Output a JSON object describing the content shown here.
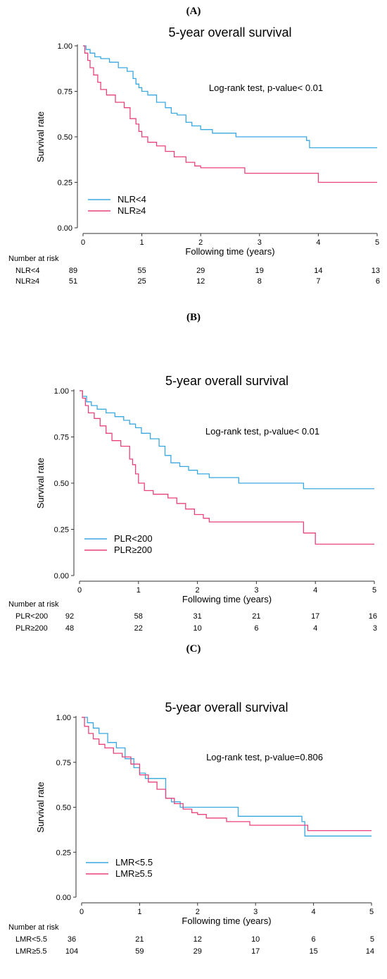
{
  "colors": {
    "blue": "#3aa8e0",
    "pink": "#e8427c",
    "axis": "#333333"
  },
  "chart_data": [
    {
      "type": "line",
      "panel_label": "(A)",
      "title": "5-year overall survival",
      "xlabel": "Following time (years)",
      "ylabel": "Survival rate",
      "xlim": [
        0,
        5
      ],
      "ylim": [
        0,
        1
      ],
      "xticks": [
        "0",
        "1",
        "2",
        "3",
        "4",
        "5"
      ],
      "yticks": [
        "0.00",
        "0.25",
        "0.50",
        "0.75",
        "1.00"
      ],
      "annotation": "Log-rank test, p-value< 0.01",
      "legend_position": "bottom-left",
      "series": [
        {
          "name": "NLR<4",
          "color": "blue",
          "x": [
            0,
            0.05,
            0.12,
            0.2,
            0.3,
            0.45,
            0.6,
            0.75,
            0.85,
            0.9,
            0.95,
            1.0,
            1.1,
            1.25,
            1.4,
            1.5,
            1.6,
            1.75,
            1.85,
            2.0,
            2.2,
            2.6,
            3.8,
            3.85,
            5.0
          ],
          "y": [
            1,
            0.98,
            0.96,
            0.94,
            0.93,
            0.91,
            0.88,
            0.86,
            0.82,
            0.79,
            0.77,
            0.75,
            0.73,
            0.69,
            0.66,
            0.63,
            0.62,
            0.58,
            0.56,
            0.54,
            0.52,
            0.5,
            0.48,
            0.44,
            0.44
          ]
        },
        {
          "name": "NLR≥4",
          "color": "pink",
          "x": [
            0,
            0.03,
            0.08,
            0.12,
            0.18,
            0.25,
            0.3,
            0.4,
            0.55,
            0.7,
            0.8,
            0.9,
            0.95,
            1.0,
            1.1,
            1.25,
            1.4,
            1.55,
            1.75,
            1.9,
            2.0,
            2.75,
            4.0,
            5.0
          ],
          "y": [
            1,
            0.96,
            0.92,
            0.88,
            0.84,
            0.8,
            0.76,
            0.73,
            0.69,
            0.66,
            0.6,
            0.57,
            0.53,
            0.5,
            0.47,
            0.45,
            0.42,
            0.39,
            0.36,
            0.34,
            0.33,
            0.3,
            0.25,
            0.25
          ]
        }
      ],
      "risk_table": {
        "title": "Number at risk",
        "rows": [
          {
            "label": "NLR<4",
            "values": [
              "89",
              "55",
              "29",
              "19",
              "14",
              "13"
            ]
          },
          {
            "label": "NLR≥4",
            "values": [
              "51",
              "25",
              "12",
              "8",
              "7",
              "6"
            ]
          }
        ]
      }
    },
    {
      "type": "line",
      "panel_label": "(B)",
      "title": "5-year overall survival",
      "xlabel": "Following time (years)",
      "ylabel": "Survival rate",
      "xlim": [
        0,
        5
      ],
      "ylim": [
        0,
        1
      ],
      "xticks": [
        "0",
        "1",
        "2",
        "3",
        "4",
        "5"
      ],
      "yticks": [
        "0.00",
        "0.25",
        "0.50",
        "0.75",
        "1.00"
      ],
      "annotation": "Log-rank test, p-value< 0.01",
      "legend_position": "bottom-left",
      "series": [
        {
          "name": "PLR<200",
          "color": "blue",
          "x": [
            0,
            0.05,
            0.12,
            0.2,
            0.3,
            0.45,
            0.6,
            0.75,
            0.85,
            0.95,
            1.05,
            1.2,
            1.35,
            1.45,
            1.55,
            1.7,
            1.85,
            2.0,
            2.2,
            2.7,
            3.8,
            5.0
          ],
          "y": [
            1,
            0.97,
            0.94,
            0.92,
            0.9,
            0.88,
            0.86,
            0.84,
            0.82,
            0.8,
            0.77,
            0.74,
            0.7,
            0.65,
            0.61,
            0.59,
            0.57,
            0.55,
            0.53,
            0.5,
            0.47,
            0.47
          ]
        },
        {
          "name": "PLR≥200",
          "color": "pink",
          "x": [
            0,
            0.05,
            0.1,
            0.15,
            0.25,
            0.35,
            0.45,
            0.55,
            0.7,
            0.85,
            0.9,
            0.95,
            1.0,
            1.1,
            1.25,
            1.5,
            1.65,
            1.8,
            1.95,
            2.1,
            2.2,
            3.8,
            4.0,
            5.0
          ],
          "y": [
            1,
            0.96,
            0.92,
            0.88,
            0.85,
            0.81,
            0.77,
            0.73,
            0.7,
            0.63,
            0.6,
            0.55,
            0.5,
            0.46,
            0.44,
            0.42,
            0.39,
            0.36,
            0.33,
            0.31,
            0.29,
            0.23,
            0.17,
            0.17
          ]
        }
      ],
      "risk_table": {
        "title": "Number at risk",
        "rows": [
          {
            "label": "PLR<200",
            "values": [
              "92",
              "58",
              "31",
              "21",
              "17",
              "16"
            ]
          },
          {
            "label": "PLR≥200",
            "values": [
              "48",
              "22",
              "10",
              "6",
              "4",
              "3"
            ]
          }
        ]
      }
    },
    {
      "type": "line",
      "panel_label": "(C)",
      "title": "5-year overall survival",
      "xlabel": "Following time (years)",
      "ylabel": "Survival rate",
      "xlim": [
        0,
        5
      ],
      "ylim": [
        0,
        1
      ],
      "xticks": [
        "0",
        "1",
        "2",
        "3",
        "4",
        "5"
      ],
      "yticks": [
        "0.00",
        "0.25",
        "0.50",
        "0.75",
        "1.00"
      ],
      "annotation": "Log-rank test, p-value=0.806",
      "legend_position": "bottom-left",
      "series": [
        {
          "name": "LMR<5.5",
          "color": "blue",
          "x": [
            0,
            0.1,
            0.2,
            0.3,
            0.45,
            0.6,
            0.75,
            0.9,
            1.0,
            1.1,
            1.45,
            1.55,
            1.7,
            2.0,
            2.7,
            3.8,
            3.85,
            5.0
          ],
          "y": [
            1,
            0.97,
            0.94,
            0.91,
            0.86,
            0.83,
            0.77,
            0.72,
            0.69,
            0.66,
            0.55,
            0.53,
            0.5,
            0.5,
            0.45,
            0.42,
            0.34,
            0.34
          ]
        },
        {
          "name": "LMR≥5.5",
          "color": "pink",
          "x": [
            0,
            0.05,
            0.12,
            0.2,
            0.3,
            0.4,
            0.55,
            0.7,
            0.85,
            1.0,
            1.15,
            1.3,
            1.45,
            1.6,
            1.75,
            1.9,
            2.0,
            2.15,
            2.5,
            2.9,
            3.9,
            5.0
          ],
          "y": [
            1,
            0.95,
            0.91,
            0.88,
            0.85,
            0.83,
            0.8,
            0.78,
            0.74,
            0.68,
            0.64,
            0.6,
            0.55,
            0.52,
            0.49,
            0.47,
            0.46,
            0.44,
            0.42,
            0.4,
            0.37,
            0.37
          ]
        }
      ],
      "risk_table": {
        "title": "Number at risk",
        "rows": [
          {
            "label": "LMR<5.5",
            "values": [
              "36",
              "21",
              "12",
              "10",
              "6",
              "5"
            ]
          },
          {
            "label": "LMR≥5.5",
            "values": [
              "104",
              "59",
              "29",
              "17",
              "15",
              "14"
            ]
          }
        ]
      }
    }
  ]
}
